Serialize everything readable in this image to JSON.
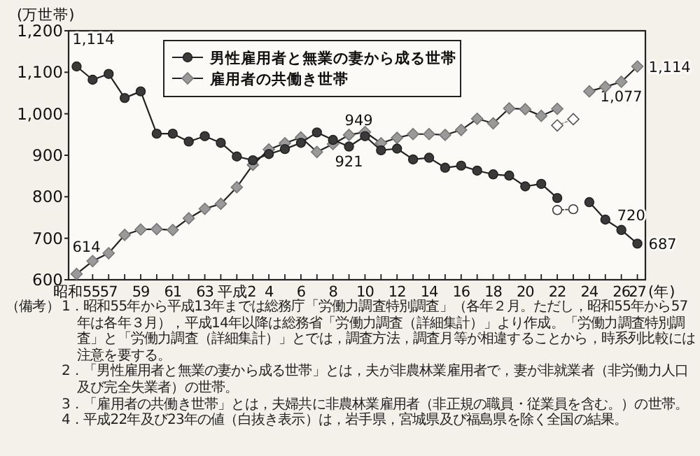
{
  "chart_data": {
    "type": "line",
    "ylabel": "(万世帯)",
    "xlabel": "(年)",
    "categories": [
      "昭和55",
      null,
      "57",
      null,
      "59",
      null,
      "61",
      null,
      "63",
      null,
      "平成2",
      null,
      "4",
      null,
      "6",
      null,
      "8",
      null,
      "10",
      null,
      "12",
      null,
      "14",
      null,
      "16",
      null,
      "18",
      null,
      "20",
      null,
      "22",
      null,
      "24",
      null,
      "26",
      "27"
    ],
    "ylim": [
      600,
      1200
    ],
    "yticks": [
      600,
      700,
      800,
      900,
      {
        "value": 1000,
        "label": "1,000"
      },
      {
        "value": 1100,
        "label": "1,100"
      },
      {
        "value": 1200,
        "label": "1,200"
      }
    ],
    "grid": false,
    "legend": "top",
    "series": [
      {
        "name": "男性雇用者と無業の妻から成る世帯",
        "color": "#3a3a3a",
        "marker": "circle",
        "line_style": "solid",
        "values": [
          1114,
          1082,
          1096,
          1038,
          1054,
          952,
          952,
          933,
          946,
          930,
          897,
          888,
          903,
          915,
          930,
          955,
          937,
          921,
          946,
          912,
          916,
          890,
          894,
          870,
          875,
          863,
          854,
          851,
          825,
          831,
          797,
          null,
          787,
          745,
          720,
          687
        ],
        "value_labels": [
          "1,114",
          null,
          null,
          null,
          null,
          null,
          null,
          null,
          null,
          null,
          null,
          null,
          null,
          null,
          null,
          null,
          null,
          "921",
          null,
          null,
          null,
          null,
          null,
          null,
          null,
          null,
          null,
          null,
          null,
          null,
          null,
          null,
          null,
          null,
          "720",
          "687"
        ]
      },
      {
        "name": "雇用者の共働き世帯",
        "color": "#9a9a9a",
        "marker": "diamond",
        "line_style": "solid",
        "values": [
          614,
          645,
          664,
          708,
          721,
          722,
          720,
          748,
          771,
          783,
          823,
          877,
          914,
          929,
          943,
          908,
          927,
          949,
          956,
          929,
          942,
          951,
          951,
          949,
          961,
          988,
          977,
          1013,
          1011,
          995,
          1012,
          null,
          1054,
          1065,
          1077,
          1114
        ],
        "value_labels": [
          "614",
          null,
          null,
          null,
          null,
          null,
          null,
          null,
          null,
          null,
          null,
          null,
          null,
          null,
          null,
          null,
          null,
          "949",
          null,
          null,
          null,
          null,
          null,
          null,
          null,
          null,
          null,
          null,
          null,
          null,
          null,
          null,
          null,
          null,
          "1,077",
          "1,114"
        ]
      },
      {
        "color": "#3a3a3a",
        "marker": "circle",
        "line_style": "dotted",
        "values": [
          null,
          null,
          null,
          null,
          null,
          null,
          null,
          null,
          null,
          null,
          null,
          null,
          null,
          null,
          null,
          null,
          null,
          null,
          null,
          null,
          null,
          null,
          null,
          null,
          null,
          null,
          null,
          null,
          null,
          null,
          768,
          770,
          null,
          null,
          null,
          null
        ]
      },
      {
        "color": "#9a9a9a",
        "marker": "diamond",
        "line_style": "dotted",
        "values": [
          null,
          null,
          null,
          null,
          null,
          null,
          null,
          null,
          null,
          null,
          null,
          null,
          null,
          null,
          null,
          null,
          null,
          null,
          null,
          null,
          null,
          null,
          null,
          null,
          null,
          null,
          null,
          null,
          null,
          null,
          972,
          987,
          null,
          null,
          null,
          null
        ]
      }
    ],
    "annotations": [
      "（備考）",
      "1．昭和55年から平成13年までは総務庁「労働力調査特別調査」（各年２月。ただし，昭和55年から57年は各年３月），平成14年以降は総務省「労働力調査（詳細集計）」より作成。「労働力調査特別調査」と「労働力調査（詳細集計）」とでは，調査方法，調査月等が相違することから，時系列比較には注意を要する。",
      "2．「男性雇用者と無業の妻から成る世帯」とは，夫が非農林業雇用者で，妻が非就業者（非労働力人口及び完全失業者）の世帯。",
      "3．「雇用者の共働き世帯」とは，夫婦共に非農林業雇用者（非正規の職員・従業員を含む。）の世帯。",
      "4．平成22年及び23年の値（白抜き表示）は，岩手県，宮城県及び福島県を除く全国の結果。"
    ]
  }
}
